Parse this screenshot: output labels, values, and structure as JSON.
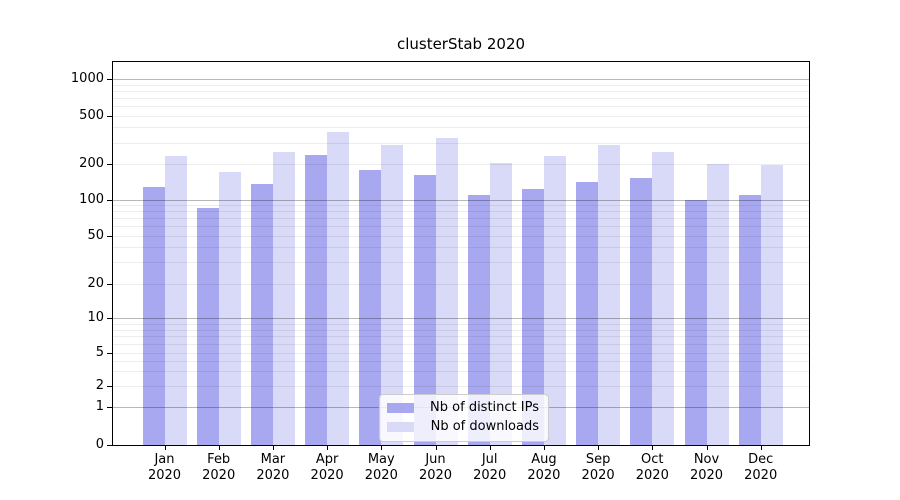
{
  "chart_data": {
    "type": "bar",
    "title": "clusterStab 2020",
    "categories": [
      {
        "month": "Jan",
        "year": "2020"
      },
      {
        "month": "Feb",
        "year": "2020"
      },
      {
        "month": "Mar",
        "year": "2020"
      },
      {
        "month": "Apr",
        "year": "2020"
      },
      {
        "month": "May",
        "year": "2020"
      },
      {
        "month": "Jun",
        "year": "2020"
      },
      {
        "month": "Jul",
        "year": "2020"
      },
      {
        "month": "Aug",
        "year": "2020"
      },
      {
        "month": "Sep",
        "year": "2020"
      },
      {
        "month": "Oct",
        "year": "2020"
      },
      {
        "month": "Nov",
        "year": "2020"
      },
      {
        "month": "Dec",
        "year": "2020"
      }
    ],
    "series": [
      {
        "name": "Nb of distinct IPs",
        "color": "#a8a8f0",
        "values": [
          128,
          85,
          135,
          240,
          180,
          162,
          110,
          122,
          140,
          152,
          100,
          110
        ]
      },
      {
        "name": "Nb of downloads",
        "color": "#d9d9f8",
        "values": [
          232,
          172,
          252,
          368,
          288,
          327,
          206,
          235,
          290,
          252,
          200,
          197
        ]
      }
    ],
    "xlabel": "",
    "ylabel": "",
    "yscale": "log-like with 0 baseline",
    "y_ticks": [
      0,
      1,
      2,
      5,
      10,
      20,
      50,
      100,
      200,
      500,
      1000
    ],
    "ylim": [
      0,
      1400
    ],
    "grid": true,
    "legend_position": "lower center"
  }
}
